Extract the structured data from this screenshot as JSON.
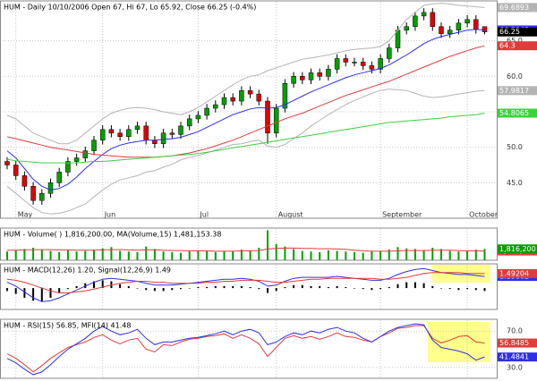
{
  "chart_data": [
    {
      "type": "candlestick",
      "title": "HUM - Daily 10/10/2006 Open 67, Hi 67, Lo 65.92, Close 66.25 (-0.4%)",
      "categories": [
        null,
        "May",
        null,
        null,
        null,
        null,
        null,
        null,
        null,
        null,
        null,
        "Jun",
        null,
        null,
        null,
        null,
        null,
        null,
        null,
        null,
        null,
        null,
        "Jul",
        null,
        null,
        null,
        null,
        null,
        null,
        null,
        null,
        "August",
        null,
        null,
        null,
        null,
        null,
        null,
        null,
        null,
        null,
        null,
        null,
        "September",
        null,
        null,
        null,
        null,
        null,
        null,
        null,
        null,
        null,
        "October",
        null,
        null
      ],
      "open": [
        48.0,
        47.5,
        46.0,
        44.5,
        42.5,
        43.5,
        45.0,
        46.5,
        48.0,
        48.5,
        49.5,
        51.0,
        52.5,
        52.0,
        51.5,
        52.5,
        53.0,
        51.0,
        50.5,
        52.0,
        51.8,
        53.0,
        54.0,
        54.5,
        55.5,
        56.0,
        57.0,
        56.5,
        58.0,
        57.5,
        56.5,
        52.0,
        55.5,
        59.0,
        60.0,
        59.5,
        60.5,
        60.0,
        61.0,
        62.5,
        62.0,
        62.0,
        61.5,
        61.0,
        62.5,
        64.0,
        66.5,
        67.0,
        68.5,
        69.0,
        67.0,
        66.0,
        66.5,
        67.5,
        68.0,
        67.0
      ],
      "high": [
        48.6,
        48.1,
        46.6,
        45.1,
        44.1,
        45.6,
        47.1,
        48.6,
        49.1,
        50.1,
        51.6,
        53.1,
        53.1,
        52.6,
        53.1,
        53.6,
        53.6,
        51.6,
        52.6,
        52.6,
        53.6,
        54.6,
        55.1,
        56.1,
        56.6,
        57.6,
        57.6,
        58.6,
        58.6,
        58.1,
        57.1,
        56.1,
        59.6,
        60.6,
        60.6,
        61.1,
        61.1,
        61.6,
        63.1,
        63.1,
        62.6,
        62.6,
        62.1,
        63.1,
        64.6,
        67.1,
        67.6,
        69.1,
        69.6,
        69.6,
        67.6,
        67.1,
        68.1,
        68.6,
        68.6,
        67.0
      ],
      "low": [
        46.9,
        45.4,
        43.9,
        41.9,
        41.9,
        42.9,
        44.4,
        45.9,
        47.4,
        47.9,
        48.9,
        50.4,
        51.4,
        50.9,
        50.9,
        51.9,
        50.4,
        49.9,
        49.9,
        51.2,
        51.2,
        52.4,
        53.4,
        53.9,
        54.9,
        55.4,
        55.9,
        55.9,
        56.9,
        55.9,
        50.5,
        51.4,
        54.9,
        58.4,
        58.9,
        58.9,
        59.4,
        59.4,
        60.4,
        61.4,
        61.4,
        60.9,
        60.4,
        60.4,
        61.9,
        63.4,
        65.9,
        66.4,
        67.9,
        66.4,
        65.4,
        65.4,
        65.9,
        66.9,
        66.0,
        65.92
      ],
      "close": [
        47.5,
        46.0,
        44.5,
        42.5,
        43.5,
        45.0,
        46.5,
        48.0,
        48.5,
        49.5,
        51.0,
        52.5,
        52.0,
        51.5,
        52.5,
        53.0,
        51.0,
        50.5,
        52.0,
        51.8,
        53.0,
        54.0,
        54.5,
        55.5,
        56.0,
        57.0,
        56.5,
        58.0,
        57.5,
        56.5,
        52.0,
        55.5,
        59.0,
        60.0,
        59.5,
        60.5,
        60.0,
        61.0,
        62.5,
        62.0,
        62.0,
        61.5,
        61.0,
        62.5,
        64.0,
        66.5,
        67.0,
        68.5,
        69.0,
        67.0,
        66.0,
        66.5,
        67.5,
        68.0,
        66.6,
        66.25
      ],
      "up_color": "#00a000",
      "down_color": "#e00000",
      "series": [
        {
          "color": "#b4b4b4",
          "values": [
            54.5,
            54,
            53,
            52,
            51.5,
            51,
            50.5,
            50.5,
            51,
            52,
            53,
            54,
            54.8,
            55.2,
            55.5,
            55.6,
            55.5,
            55.3,
            55.0,
            54.8,
            54.6,
            55,
            55.6,
            56.4,
            57.2,
            58,
            58.8,
            59.5,
            60,
            60.2,
            60.8,
            61.2,
            61.6,
            62,
            62.4,
            62.6,
            62.8,
            63,
            63.3,
            63.6,
            63.8,
            63.9,
            64,
            64.2,
            65,
            66.5,
            68,
            69,
            70,
            70.2,
            70.3,
            70.2,
            70,
            69.9,
            69.8,
            69.6893
          ]
        },
        {
          "color": "#b4b4b4",
          "values": [
            44.5,
            43.5,
            42.5,
            41.5,
            40.8,
            40.6,
            40.7,
            41,
            41.5,
            42,
            43,
            44,
            44.8,
            45.4,
            45.7,
            46,
            46.5,
            46.7,
            47.2,
            47.6,
            48.2,
            48.6,
            48.8,
            49.2,
            49.6,
            50,
            50.4,
            50.5,
            50.8,
            51,
            50.2,
            50,
            50.4,
            51.2,
            52,
            53,
            53.8,
            54.6,
            55.3,
            56,
            56.6,
            57.1,
            57.6,
            58,
            58.2,
            58.1,
            58,
            57.6,
            57.2,
            57,
            57.1,
            57.3,
            57.5,
            57.7,
            57.9,
            57.9817
          ]
        },
        {
          "color": "#2f2fe8",
          "values": [
            49.5,
            48.5,
            47,
            45.5,
            44.5,
            44,
            44.2,
            44.8,
            45.8,
            47,
            48,
            49,
            49.8,
            50.3,
            50.6,
            50.8,
            51,
            51,
            51.1,
            51.2,
            51.4,
            51.8,
            52.2,
            52.8,
            53.4,
            54,
            54.6,
            55,
            55.4,
            55.6,
            55.5,
            55.6,
            56,
            56.6,
            57.2,
            57.8,
            58.3,
            58.8,
            59.3,
            59.8,
            60.2,
            60.5,
            60.8,
            61.1,
            61.6,
            62.3,
            63,
            63.8,
            64.6,
            65.2,
            65.6,
            65.9,
            66.2,
            66.5,
            66.6,
            66.5343
          ]
        },
        {
          "color": "#e03c3c",
          "values": [
            51.5,
            51.2,
            50.9,
            50.6,
            50.3,
            50,
            49.8,
            49.6,
            49.4,
            49.2,
            49.0,
            48.9,
            48.8,
            48.7,
            48.6,
            48.6,
            48.6,
            48.6,
            48.7,
            48.8,
            49.0,
            49.2,
            49.5,
            49.8,
            50.2,
            50.6,
            51.0,
            51.5,
            52.0,
            52.5,
            53.0,
            53.5,
            54.0,
            54.4,
            54.8,
            55.3,
            55.8,
            56.3,
            56.8,
            57.3,
            57.7,
            58.1,
            58.5,
            58.9,
            59.3,
            59.8,
            60.3,
            60.8,
            61.3,
            61.8,
            62.3,
            62.8,
            63.2,
            63.6,
            64.0,
            64.3
          ]
        },
        {
          "color": "#3cd23c",
          "values": [
            48.3,
            48.1,
            48.0,
            47.9,
            47.8,
            47.8,
            47.8,
            47.8,
            47.8,
            47.9,
            48.0,
            48.0,
            48.1,
            48.2,
            48.3,
            48.4,
            48.5,
            48.6,
            48.7,
            48.8,
            48.9,
            49.0,
            49.1,
            49.3,
            49.5,
            49.7,
            49.9,
            50.1,
            50.3,
            50.5,
            50.7,
            50.9,
            51.1,
            51.3,
            51.5,
            51.7,
            51.9,
            52.1,
            52.3,
            52.5,
            52.7,
            52.9,
            53.1,
            53.3,
            53.5,
            53.6,
            53.7,
            53.8,
            53.9,
            54.0,
            54.1,
            54.3,
            54.4,
            54.5,
            54.6,
            54.8065
          ]
        }
      ],
      "ylim": [
        40,
        70.5
      ],
      "yticks": [
        {
          "value": 45,
          "label": "45.0"
        },
        {
          "value": 50,
          "label": "50.0"
        },
        {
          "value": 55,
          "label": "55.0"
        },
        {
          "value": 60,
          "label": "60.0"
        },
        {
          "value": 65,
          "label": "65.0"
        }
      ],
      "grid": true
    },
    {
      "type": "bar",
      "title": "HUM - Volume( ) 1,816,200.00, MA(Volume,15) 1,481,153.38",
      "color": "#00a000",
      "end_label": "1,816,200",
      "values": [
        1400000,
        1600000,
        1800000,
        2000000,
        1700000,
        1500000,
        1300000,
        1600000,
        1400000,
        1500000,
        1700000,
        1900000,
        2100000,
        1500000,
        1400000,
        1300000,
        2200000,
        1800000,
        1400000,
        1300000,
        1200000,
        1400000,
        1600000,
        1500000,
        1300000,
        1400000,
        1500000,
        1700000,
        1600000,
        2000000,
        4800000,
        2600000,
        2200000,
        1800000,
        1500000,
        1400000,
        1300000,
        1600000,
        1500000,
        1400000,
        1300000,
        1200000,
        1400000,
        1500000,
        1700000,
        2100000,
        1900000,
        1800000,
        1600000,
        2000000,
        1800000,
        1500000,
        1400000,
        1500000,
        1700000,
        1816200
      ],
      "series": [
        {
          "color": "#e03c3c",
          "end_label": "1,481,153",
          "values": [
            1600000,
            1600000,
            1650000,
            1700000,
            1700000,
            1700000,
            1650000,
            1650000,
            1600000,
            1600000,
            1600000,
            1650000,
            1700000,
            1700000,
            1650000,
            1600000,
            1650000,
            1650000,
            1600000,
            1550000,
            1550000,
            1500000,
            1500000,
            1500000,
            1450000,
            1450000,
            1450000,
            1500000,
            1500000,
            1550000,
            1800000,
            1900000,
            1950000,
            1950000,
            1900000,
            1900000,
            1850000,
            1850000,
            1800000,
            1750000,
            1600000,
            1500000,
            1450000,
            1450000,
            1450000,
            1500000,
            1550000,
            1550000,
            1550000,
            1600000,
            1600000,
            1600000,
            1550000,
            1500000,
            1500000,
            1481153.38
          ]
        }
      ],
      "ylim": [
        0,
        5000000
      ]
    },
    {
      "type": "bar",
      "title": "HUM - MACD(12,26) 1.20, Signal(12,26,9) 1.49",
      "color": "#000000",
      "values": [
        -0.3,
        -0.6,
        -1.0,
        -1.3,
        -1.4,
        -1.0,
        -0.5,
        -0.1,
        0.2,
        0.5,
        0.7,
        0.8,
        0.7,
        0.4,
        0.2,
        0.0,
        -0.2,
        -0.3,
        -0.3,
        -0.2,
        -0.1,
        0.0,
        0.1,
        0.1,
        0.2,
        0.2,
        0.2,
        0.2,
        0.1,
        -0.1,
        -0.5,
        -0.3,
        0.1,
        0.3,
        0.3,
        0.2,
        0.2,
        0.1,
        0.2,
        0.1,
        0.0,
        -0.1,
        -0.2,
        -0.1,
        0.1,
        0.4,
        0.6,
        0.6,
        0.5,
        0.2,
        0.0,
        -0.1,
        -0.2,
        -0.1,
        -0.2,
        -0.3
      ],
      "series": [
        {
          "color": "#2f2fe8",
          "values": [
            0.6,
            0.2,
            -0.4,
            -1.0,
            -1.4,
            -1.3,
            -1.0,
            -0.6,
            -0.2,
            0.2,
            0.6,
            0.9,
            1.0,
            0.9,
            0.8,
            0.7,
            0.5,
            0.3,
            0.3,
            0.3,
            0.4,
            0.5,
            0.6,
            0.7,
            0.8,
            0.9,
            0.9,
            1.0,
            0.9,
            0.7,
            0.2,
            0.3,
            0.7,
            1.0,
            1.1,
            1.1,
            1.1,
            1.1,
            1.2,
            1.1,
            1.0,
            0.9,
            0.8,
            0.8,
            1.0,
            1.4,
            1.7,
            1.9,
            2.0,
            1.8,
            1.6,
            1.5,
            1.4,
            1.4,
            1.3,
            1.19602
          ]
        },
        {
          "color": "#e03c3c",
          "values": [
            0.9,
            0.8,
            0.6,
            0.3,
            0.0,
            -0.3,
            -0.5,
            -0.5,
            -0.4,
            -0.3,
            -0.1,
            0.1,
            0.3,
            0.5,
            0.6,
            0.7,
            0.7,
            0.6,
            0.6,
            0.5,
            0.5,
            0.5,
            0.5,
            0.6,
            0.6,
            0.7,
            0.7,
            0.8,
            0.8,
            0.8,
            0.7,
            0.6,
            0.6,
            0.7,
            0.8,
            0.9,
            0.9,
            1.0,
            1.0,
            1.0,
            1.0,
            1.0,
            1.0,
            0.9,
            0.9,
            1.0,
            1.1,
            1.3,
            1.5,
            1.6,
            1.6,
            1.6,
            1.6,
            1.5,
            1.5,
            1.49204
          ]
        }
      ],
      "ylim": [
        -2.2,
        2.4
      ]
    },
    {
      "type": "line",
      "title": "HUM - RSI(15) 56.85, MFI(14) 41.48",
      "series": [
        {
          "color": "#e03c3c",
          "values": [
            45,
            40,
            33,
            25,
            32,
            40,
            46,
            52,
            55,
            58,
            63,
            66,
            60,
            56,
            60,
            62,
            50,
            47,
            55,
            54,
            58,
            61,
            62,
            64,
            65,
            67,
            62,
            66,
            62,
            56,
            42,
            52,
            62,
            65,
            62,
            64,
            61,
            64,
            68,
            64,
            63,
            60,
            58,
            64,
            68,
            73,
            74,
            76,
            76,
            62,
            57,
            60,
            64,
            65,
            58,
            56.8485
          ]
        },
        {
          "color": "#2f2fe8",
          "values": [
            40,
            35,
            28,
            22,
            25,
            33,
            42,
            50,
            56,
            62,
            70,
            75,
            70,
            66,
            68,
            72,
            62,
            55,
            58,
            58,
            60,
            62,
            63,
            65,
            67,
            70,
            66,
            70,
            72,
            68,
            55,
            58,
            64,
            68,
            66,
            70,
            68,
            72,
            74,
            70,
            68,
            62,
            58,
            64,
            70,
            74,
            76,
            78,
            77,
            60,
            52,
            50,
            48,
            45,
            38,
            41.4841
          ]
        }
      ],
      "ylim": [
        18,
        82
      ],
      "yticks": [
        {
          "value": 70,
          "label": "70.0"
        },
        {
          "value": 30,
          "label": "30.0"
        }
      ],
      "grid": true
    }
  ]
}
